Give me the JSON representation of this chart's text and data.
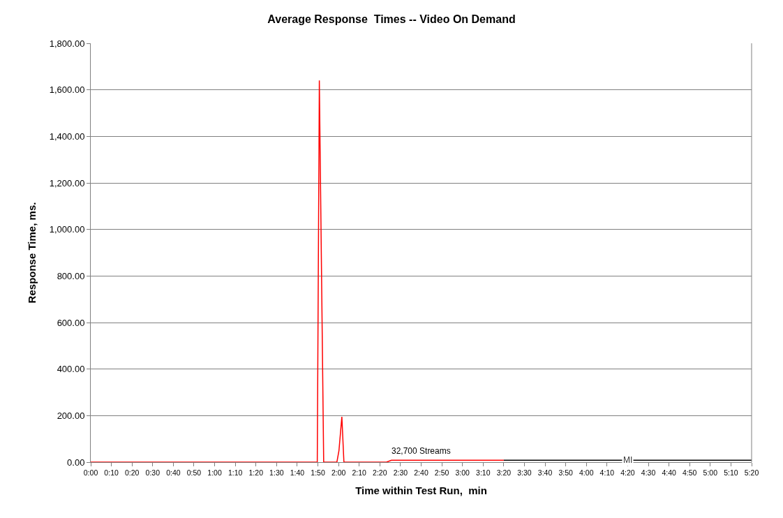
{
  "chart_data": {
    "type": "line",
    "title": "Average Response  Times -- Video On Demand",
    "xlabel": "Time within Test Run,  min",
    "ylabel": "Response Time, ms.",
    "series": [
      {
        "color": "#ff0000",
        "x": [
          0,
          109.7,
          110.7,
          112.8,
          119.2,
          120.2,
          121.6,
          122.6,
          143.2,
          145.6,
          200
        ],
        "values": [
          0,
          0,
          1640,
          0,
          0,
          50,
          195,
          0,
          0,
          8,
          8
        ]
      },
      {
        "name": "MI",
        "color": "#000000",
        "x": [
          200,
          320
        ],
        "values": [
          8,
          8
        ]
      }
    ],
    "xlim": [
      0,
      320
    ],
    "xticks": [
      {
        "value": 0,
        "label": "0:00"
      },
      {
        "value": 10,
        "label": "0:10"
      },
      {
        "value": 20,
        "label": "0:20"
      },
      {
        "value": 30,
        "label": "0:30"
      },
      {
        "value": 40,
        "label": "0:40"
      },
      {
        "value": 50,
        "label": "0:50"
      },
      {
        "value": 60,
        "label": "1:00"
      },
      {
        "value": 70,
        "label": "1:10"
      },
      {
        "value": 80,
        "label": "1:20"
      },
      {
        "value": 90,
        "label": "1:30"
      },
      {
        "value": 100,
        "label": "1:40"
      },
      {
        "value": 110,
        "label": "1:50"
      },
      {
        "value": 120,
        "label": "2:00"
      },
      {
        "value": 130,
        "label": "2:10"
      },
      {
        "value": 140,
        "label": "2:20"
      },
      {
        "value": 150,
        "label": "2:30"
      },
      {
        "value": 160,
        "label": "2:40"
      },
      {
        "value": 170,
        "label": "2:50"
      },
      {
        "value": 180,
        "label": "3:00"
      },
      {
        "value": 190,
        "label": "3:10"
      },
      {
        "value": 200,
        "label": "3:20"
      },
      {
        "value": 210,
        "label": "3:30"
      },
      {
        "value": 220,
        "label": "3:40"
      },
      {
        "value": 230,
        "label": "3:50"
      },
      {
        "value": 240,
        "label": "4:00"
      },
      {
        "value": 250,
        "label": "4:10"
      },
      {
        "value": 260,
        "label": "4:20"
      },
      {
        "value": 270,
        "label": "4:30"
      },
      {
        "value": 280,
        "label": "4:40"
      },
      {
        "value": 290,
        "label": "4:50"
      },
      {
        "value": 300,
        "label": "5:00"
      },
      {
        "value": 310,
        "label": "5:10"
      },
      {
        "value": 320,
        "label": "5:20"
      }
    ],
    "ylim": [
      0,
      1800
    ],
    "yticks": [
      {
        "value": 0,
        "label": "0.00"
      },
      {
        "value": 200,
        "label": "200.00"
      },
      {
        "value": 400,
        "label": "400.00"
      },
      {
        "value": 600,
        "label": "600.00"
      },
      {
        "value": 800,
        "label": "800.00"
      },
      {
        "value": 1000,
        "label": "1,000.00"
      },
      {
        "value": 1200,
        "label": "1,200.00"
      },
      {
        "value": 1400,
        "label": "1,400.00"
      },
      {
        "value": 1600,
        "label": "1,600.00"
      },
      {
        "value": 1800,
        "label": "1,800.00"
      }
    ],
    "grid": "y",
    "legend": false,
    "marker": "none",
    "line_style": "solid",
    "annotations": [
      {
        "text": "32,700 Streams",
        "x": 160,
        "y": 8
      }
    ]
  }
}
